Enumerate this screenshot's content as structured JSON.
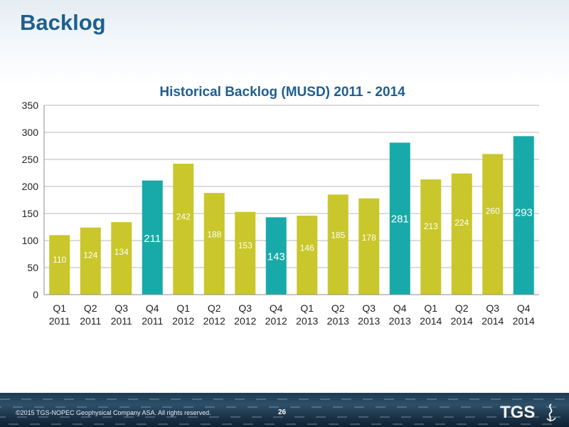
{
  "slide": {
    "title": "Backlog"
  },
  "footer": {
    "copyright": "©2015 TGS-NOPEC Geophysical Company ASA. All rights reserved.",
    "page_number": "26",
    "logo_text": "TGS"
  },
  "colors": {
    "bar_regular": "#c9c72b",
    "bar_q4": "#17aaa9",
    "title": "#1f5f8f"
  },
  "chart_data": {
    "type": "bar",
    "title": "Historical Backlog (MUSD) 2011 - 2014",
    "categories": [
      [
        "Q1",
        "2011"
      ],
      [
        "Q2",
        "2011"
      ],
      [
        "Q3",
        "2011"
      ],
      [
        "Q4",
        "2011"
      ],
      [
        "Q1",
        "2012"
      ],
      [
        "Q2",
        "2012"
      ],
      [
        "Q3",
        "2012"
      ],
      [
        "Q4",
        "2012"
      ],
      [
        "Q1",
        "2013"
      ],
      [
        "Q2",
        "2013"
      ],
      [
        "Q3",
        "2013"
      ],
      [
        "Q4",
        "2013"
      ],
      [
        "Q1",
        "2014"
      ],
      [
        "Q2",
        "2014"
      ],
      [
        "Q3",
        "2014"
      ],
      [
        "Q4",
        "2014"
      ]
    ],
    "values": [
      110,
      124,
      134,
      211,
      242,
      188,
      153,
      143,
      146,
      185,
      178,
      281,
      213,
      224,
      260,
      293
    ],
    "ylim": [
      0,
      350
    ],
    "yticks": [
      0,
      50,
      100,
      150,
      200,
      250,
      300,
      350
    ],
    "grid": true,
    "legend": "none",
    "highlight": "Q4 bars shown in teal"
  }
}
